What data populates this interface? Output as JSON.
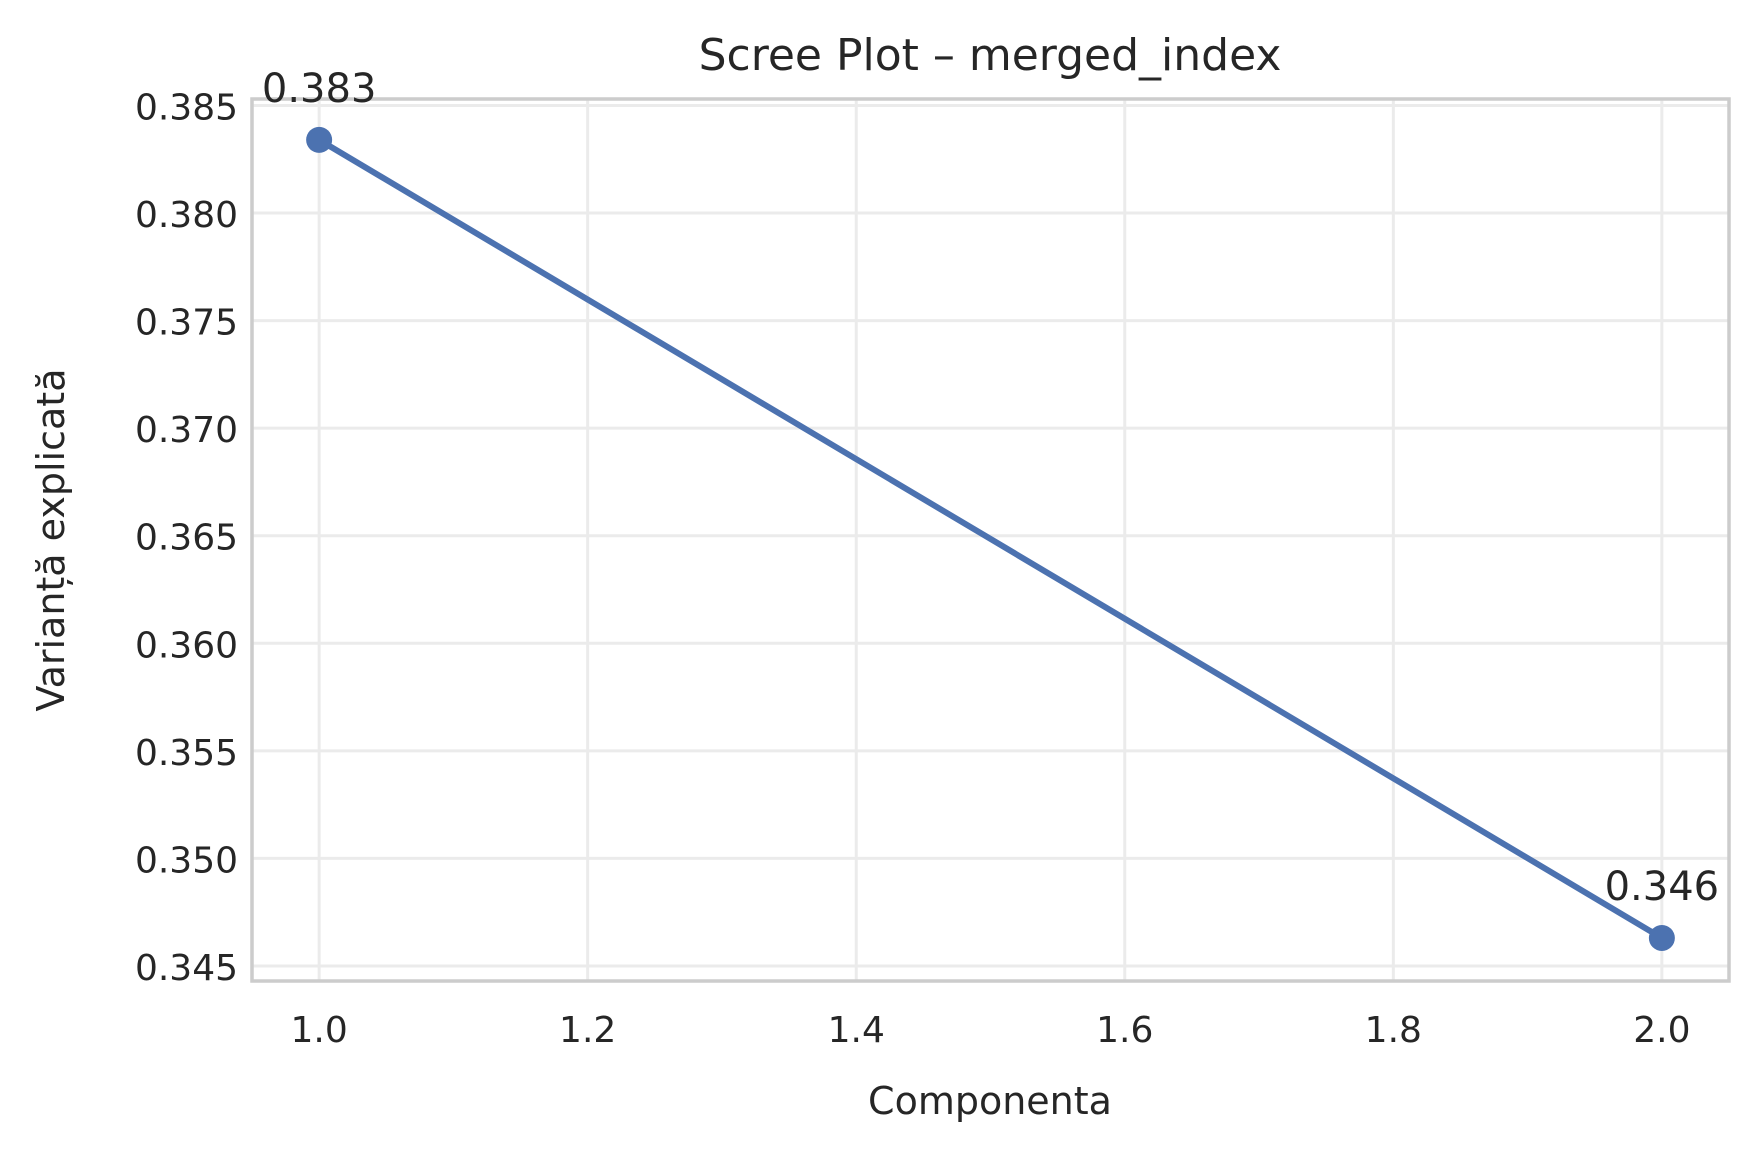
{
  "chart_data": {
    "type": "line",
    "title": "Scree Plot – merged_index",
    "xlabel": "Componenta",
    "ylabel": "Varianță explicată",
    "x": [
      1.0,
      2.0
    ],
    "series": [
      {
        "values": [
          0.3834,
          0.3463
        ],
        "labels": [
          "0.383",
          "0.346"
        ],
        "color": "#4c72b0",
        "marker": "circle"
      }
    ],
    "xlim": [
      0.95,
      2.05
    ],
    "ylim": [
      0.3443,
      0.3853
    ],
    "xticks": [
      1.0,
      1.2,
      1.4,
      1.6,
      1.8,
      2.0
    ],
    "xtick_labels": [
      "1.0",
      "1.2",
      "1.4",
      "1.6",
      "1.8",
      "2.0"
    ],
    "yticks": [
      0.345,
      0.35,
      0.355,
      0.36,
      0.365,
      0.37,
      0.375,
      0.38,
      0.385
    ],
    "ytick_labels": [
      "0.345",
      "0.350",
      "0.355",
      "0.360",
      "0.365",
      "0.370",
      "0.375",
      "0.380",
      "0.385"
    ],
    "grid": true,
    "legend": "none",
    "colors": {
      "line": "#4c72b0",
      "grid": "#ebebeb",
      "frame": "#cccccc",
      "text": "#262626"
    }
  }
}
